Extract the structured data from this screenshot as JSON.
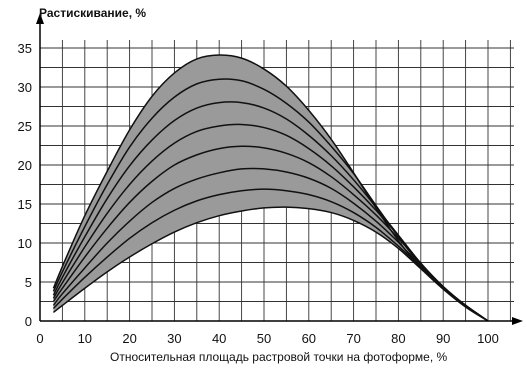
{
  "chart_data": {
    "type": "area",
    "title": "",
    "ylabel": "Растискивание, %",
    "xlabel": "Относительная площадь растровой точки на фотоформе, %",
    "xlim": [
      0,
      100
    ],
    "ylim": [
      0,
      35
    ],
    "x_ticks": [
      0,
      10,
      20,
      30,
      40,
      50,
      60,
      70,
      80,
      90,
      100
    ],
    "y_ticks": [
      0,
      5,
      10,
      15,
      20,
      25,
      30,
      35
    ],
    "grid": true,
    "fill_color": "#9a9a9a",
    "line_color": "#111111",
    "x": [
      3,
      5,
      10,
      15,
      20,
      25,
      30,
      35,
      40,
      45,
      50,
      55,
      60,
      65,
      70,
      75,
      80,
      85,
      90,
      95,
      100
    ],
    "series": [
      {
        "values": [
          4.2,
          7.0,
          13.5,
          19.2,
          24.5,
          28.8,
          31.8,
          33.6,
          34.1,
          33.7,
          32.3,
          30.1,
          27.0,
          23.3,
          19.0,
          14.5,
          10.3,
          6.8,
          4.1,
          1.8,
          0
        ]
      },
      {
        "values": [
          3.8,
          6.3,
          12.1,
          17.5,
          22.3,
          26.0,
          28.7,
          30.4,
          31.0,
          30.8,
          29.7,
          27.9,
          25.5,
          22.4,
          18.9,
          14.8,
          10.8,
          7.2,
          4.3,
          1.9,
          0
        ]
      },
      {
        "values": [
          3.3,
          5.6,
          10.8,
          15.7,
          19.9,
          23.2,
          25.7,
          27.3,
          28.0,
          28.0,
          27.3,
          25.9,
          23.8,
          21.2,
          18.1,
          14.6,
          11.0,
          7.4,
          4.4,
          2.0,
          0
        ]
      },
      {
        "values": [
          2.9,
          4.9,
          9.5,
          13.8,
          17.5,
          20.5,
          22.8,
          24.3,
          25.0,
          25.2,
          24.8,
          23.8,
          22.1,
          19.9,
          17.2,
          14.2,
          10.9,
          7.4,
          4.4,
          2.0,
          0
        ]
      },
      {
        "values": [
          2.5,
          4.2,
          8.2,
          11.9,
          15.2,
          17.9,
          20.0,
          21.3,
          22.1,
          22.4,
          22.2,
          21.5,
          20.3,
          18.5,
          16.2,
          13.6,
          10.6,
          7.3,
          4.4,
          2.0,
          0
        ]
      },
      {
        "values": [
          2.0,
          3.5,
          6.8,
          10.0,
          12.8,
          15.2,
          17.0,
          18.2,
          19.0,
          19.5,
          19.5,
          19.1,
          18.3,
          17.0,
          15.1,
          12.8,
          10.1,
          7.1,
          4.3,
          2.0,
          0
        ]
      },
      {
        "values": [
          1.6,
          2.8,
          5.6,
          8.2,
          10.6,
          12.6,
          14.2,
          15.4,
          16.2,
          16.7,
          16.9,
          16.7,
          16.2,
          15.3,
          13.9,
          12.0,
          9.6,
          6.9,
          4.2,
          2.0,
          0
        ]
      },
      {
        "values": [
          1.1,
          2.0,
          4.2,
          6.3,
          8.2,
          9.9,
          11.4,
          12.6,
          13.5,
          14.1,
          14.5,
          14.6,
          14.4,
          13.9,
          12.9,
          11.4,
          9.3,
          6.7,
          4.1,
          1.9,
          0
        ]
      }
    ]
  }
}
